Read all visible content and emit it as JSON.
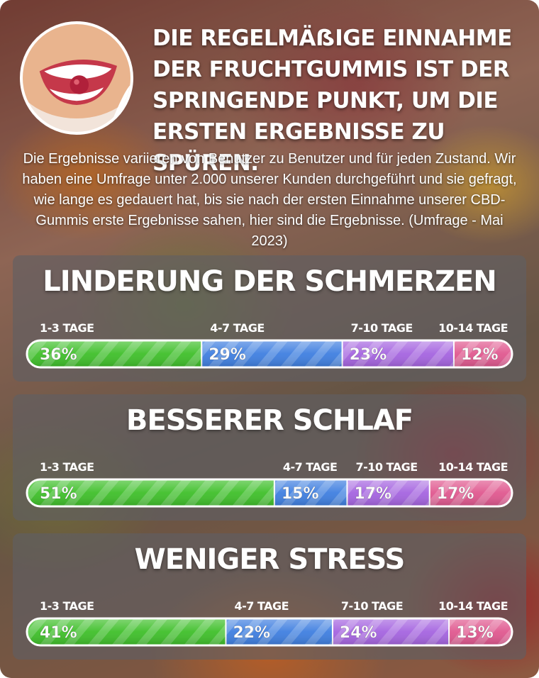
{
  "headline": "DIE REGELMÄẞIGE EINNAHME DER FRUCHTGUMMIS IST DER SPRINGENDE PUNKT, UM DIE ERSTEN ERGEBNISSE ZU SPÜREN.",
  "intro": "Die Ergebnisse variieren von Benutzer zu Benutzer und für jeden Zustand. Wir haben eine Umfrage unter 2.000 unserer Kunden durchgeführt und sie gefragt, wie lange es gedauert hat, bis sie nach der ersten Einnahme unserer CBD-Gummis erste Ergebnisse sahen, hier sind die Ergebnisse. (Umfrage - Mai 2023)",
  "colors": {
    "green": "#3fbf2a",
    "blue": "#3f7fe0",
    "purple": "#a564e0",
    "pink": "#e0588f"
  },
  "chart_data": [
    {
      "type": "bar",
      "title": "LINDERUNG DER SCHMERZEN",
      "categories": [
        "1-3 TAGE",
        "4-7 TAGE",
        "7-10 TAGE",
        "10-14 TAGE"
      ],
      "values": [
        36,
        29,
        23,
        12
      ],
      "labels": [
        "36%",
        "29%",
        "23%",
        "12%"
      ]
    },
    {
      "type": "bar",
      "title": "BESSERER SCHLAF",
      "categories": [
        "1-3 TAGE",
        "4-7 TAGE",
        "7-10 TAGE",
        "10-14 TAGE"
      ],
      "values": [
        51,
        15,
        17,
        17
      ],
      "labels": [
        "51%",
        "15%",
        "17%",
        "17%"
      ]
    },
    {
      "type": "bar",
      "title": "WENIGER STRESS",
      "categories": [
        "1-3 TAGE",
        "4-7 TAGE",
        "7-10 TAGE",
        "10-14 TAGE"
      ],
      "values": [
        41,
        22,
        24,
        13
      ],
      "labels": [
        "41%",
        "22%",
        "24%",
        "13%"
      ]
    }
  ]
}
